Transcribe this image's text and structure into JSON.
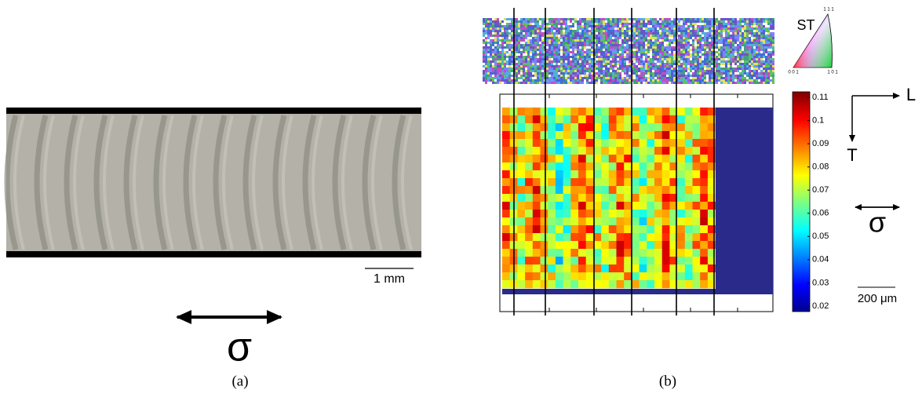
{
  "panel_a": {
    "scale_label": "1 mm",
    "stress": "σ",
    "caption": "(a)"
  },
  "panel_b": {
    "ipf": {
      "title": "ST",
      "corner_top": "1 1 1",
      "corner_left": "0 0 1",
      "corner_right": "1 0 1"
    },
    "colorbar": {
      "lim": [
        0.0176,
        0.1124
      ],
      "ticks": [
        0.11,
        0.1,
        0.09,
        0.08,
        0.07,
        0.06,
        0.05,
        0.04,
        0.03,
        0.02
      ]
    },
    "axis_l": "L",
    "axis_t": "T",
    "stress": "σ",
    "scale_label": "200 μm",
    "caption": "(b)"
  }
}
